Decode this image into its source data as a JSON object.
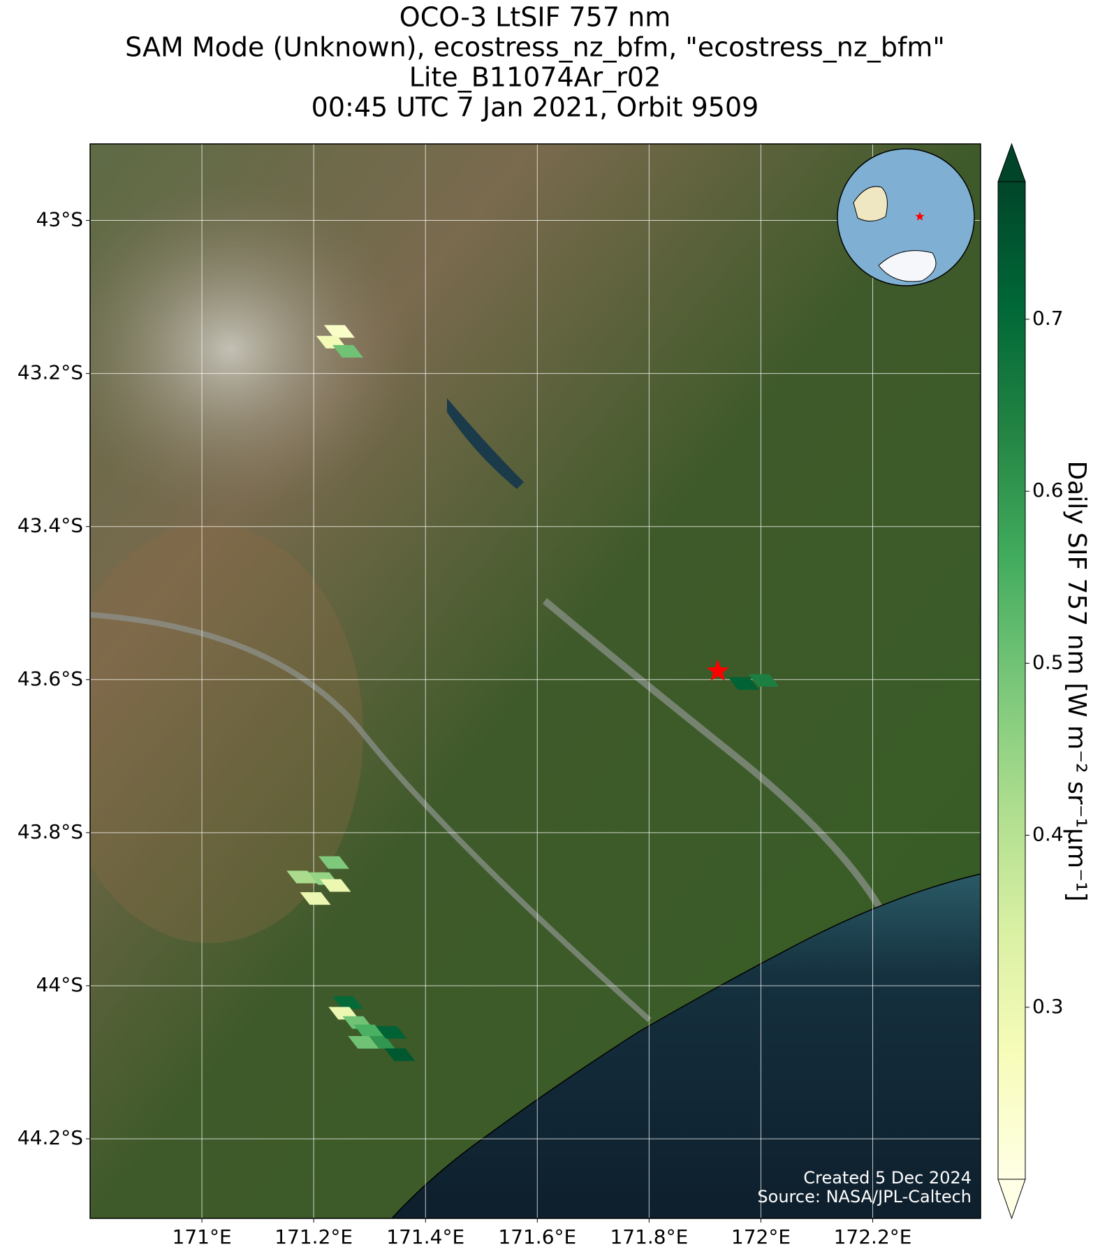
{
  "chart_data": {
    "type": "map",
    "title": [
      "OCO-3 LtSIF 757 nm",
      "SAM Mode (Unknown), ecostress_nz_bfm, \"ecostress_nz_bfm\"",
      "Lite_B11074Ar_r02",
      "00:45 UTC 7 Jan 2021, Orbit 9509"
    ],
    "xlim": [
      170.8,
      172.393
    ],
    "ylim": [
      -44.304,
      -42.9
    ],
    "xticks": [
      {
        "value": 171,
        "label": "171°E"
      },
      {
        "value": 171.2,
        "label": "171.2°E"
      },
      {
        "value": 171.4,
        "label": "171.4°E"
      },
      {
        "value": 171.6,
        "label": "171.6°E"
      },
      {
        "value": 171.8,
        "label": "171.8°E"
      },
      {
        "value": 172,
        "label": "172°E"
      },
      {
        "value": 172.2,
        "label": "172.2°E"
      }
    ],
    "yticks": [
      {
        "value": -43,
        "label": "43°S"
      },
      {
        "value": -43.2,
        "label": "43.2°S"
      },
      {
        "value": -43.4,
        "label": "43.4°S"
      },
      {
        "value": -43.6,
        "label": "43.6°S"
      },
      {
        "value": -43.8,
        "label": "43.8°S"
      },
      {
        "value": -44,
        "label": "44°S"
      },
      {
        "value": -44.2,
        "label": "44.2°S"
      }
    ],
    "grid": true,
    "footprints": {
      "lon": [
        171.246,
        171.232,
        171.261,
        171.969,
        172.005,
        171.179,
        171.203,
        171.218,
        171.236,
        171.239,
        171.261,
        171.254,
        171.279,
        171.299,
        171.318,
        171.339,
        171.354,
        171.289
      ],
      "lat": [
        -43.145,
        -43.159,
        -43.171,
        -43.605,
        -43.601,
        -43.858,
        -43.886,
        -43.86,
        -43.839,
        -43.869,
        -44.022,
        -44.036,
        -44.048,
        -44.059,
        -44.074,
        -44.061,
        -44.09,
        -44.074
      ],
      "values": [
        0.25,
        0.28,
        0.5,
        0.72,
        0.65,
        0.42,
        0.3,
        0.45,
        0.48,
        0.3,
        0.7,
        0.3,
        0.5,
        0.55,
        0.6,
        0.72,
        0.74,
        0.5
      ]
    },
    "target": {
      "lon": 171.923,
      "lat": -43.589,
      "color": "#ff0000"
    },
    "colorbar": {
      "label": "Daily SIF 757 nm [W m⁻² sr⁻¹µm⁻¹]",
      "clim": [
        0.2,
        0.78
      ],
      "ticks": [
        0.3,
        0.4,
        0.5,
        0.6,
        0.7
      ],
      "colormap": [
        "#ffffe5",
        "#f7fcb9",
        "#d9f0a3",
        "#addd8e",
        "#78c679",
        "#41ab5d",
        "#238443",
        "#006837",
        "#004529"
      ]
    },
    "credits": [
      "Created 5 Dec 2024",
      "Source: NASA/JPL-Caltech"
    ]
  }
}
